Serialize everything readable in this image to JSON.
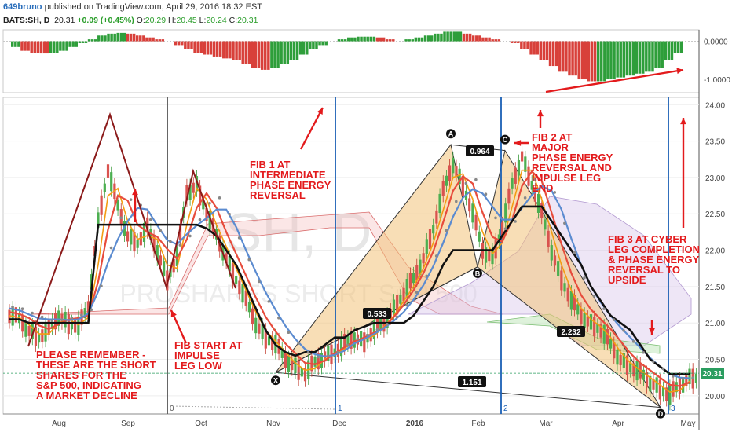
{
  "header": {
    "user": "649bruno",
    "published": "published on TradingView.com, April 29, 2016 18:32 EST"
  },
  "legend": {
    "symbol": "BATS:SH, D",
    "last": "20.31",
    "change": "+0.09 (+0.45%)",
    "o_label": "O:",
    "o": "20.29",
    "h_label": "H:",
    "h": "20.45",
    "l_label": "L:",
    "l": "20.24",
    "c_label": "C:",
    "c": "20.31"
  },
  "colors": {
    "annotation": "#e31a1c",
    "vline": "#1a5fb4",
    "price_badge": "#2a9d5f",
    "harmonic_fill": "#f2c27a"
  },
  "watermark": {
    "symbol": "SH, D",
    "name": "PROSHARES SHORT S&P 500"
  },
  "chart_data": [
    {
      "type": "line",
      "title": "",
      "x_ticks": [
        "Aug",
        "Sep",
        "Oct",
        "Nov",
        "Dec",
        "2016",
        "Feb",
        "Mar",
        "Apr",
        "May"
      ],
      "y_ticks": [
        20.0,
        20.5,
        21.0,
        21.5,
        22.0,
        22.5,
        23.0,
        23.5,
        24.0
      ],
      "ylim": [
        19.75,
        24.1
      ],
      "last_price_label": "20.31",
      "series": [
        {
          "values": [
            21.1,
            21.05,
            20.9,
            20.8,
            20.9,
            21.1,
            21.0,
            20.95,
            21.2,
            22.4,
            23.1,
            22.6,
            22.2,
            22.1,
            22.3,
            22.0,
            21.6,
            21.9,
            22.8,
            22.9,
            22.5,
            22.2,
            21.9,
            21.6,
            21.3,
            21.0,
            20.8,
            20.7,
            20.5,
            20.4,
            20.3,
            20.45,
            20.55,
            20.6,
            20.7,
            20.8,
            20.75,
            20.9,
            21.0,
            21.2,
            21.4,
            21.6,
            21.9,
            22.3,
            22.8,
            23.2,
            22.9,
            22.5,
            22.0,
            21.9,
            22.3,
            22.9,
            23.3,
            22.9,
            22.5,
            22.0,
            21.6,
            21.3,
            21.1,
            21.0,
            20.9,
            20.7,
            20.5,
            20.4,
            20.3,
            20.2,
            20.1,
            20.0,
            20.15,
            20.25
          ]
        },
        {
          "values": [
            21.05,
            21.05,
            21.0,
            21.0,
            21.0,
            21.0,
            21.0,
            21.0,
            21.0,
            22.35,
            22.35,
            22.35,
            22.35,
            22.35,
            22.35,
            22.35,
            22.35,
            22.35,
            22.35,
            22.35,
            22.3,
            22.2,
            22.0,
            21.8,
            21.5,
            21.2,
            20.9,
            20.7,
            20.6,
            20.55,
            20.6,
            20.6,
            20.7,
            20.8,
            20.8,
            20.9,
            20.95,
            21.0,
            21.0,
            21.0,
            21.0,
            21.1,
            21.3,
            21.5,
            21.8,
            22.0,
            22.0,
            22.0,
            22.0,
            22.0,
            22.2,
            22.4,
            22.6,
            22.6,
            22.6,
            22.4,
            22.2,
            22.0,
            21.8,
            21.5,
            21.3,
            21.1,
            21.0,
            20.9,
            20.7,
            20.5,
            20.4,
            20.3,
            20.3,
            20.3
          ]
        }
      ],
      "annotations": [
        "FIB 1 AT\nINTERMEDIATE\nPHASE ENERGY\nREVERSAL",
        "FIB 2 AT\nMAJOR\nPHASE ENERGY\nREVERSAL AND\nIMPULSE LEG\nEND",
        "FIB 3 AT CYBER\nLEG COMPLETION\n& PHASE ENERGY\nREVERSAL TO\nUPSIDE",
        "FIB START AT\nIMPULSE\nLEG LOW",
        "PLEASE REMEMBER -\nTHESE ARE THE SHORT\nSHARES FOR THE\nS&P 500, INDICATING\nA MARKET DECLINE"
      ],
      "pattern_points": [
        {
          "name": "X",
          "label": "X",
          "price": 20.32
        },
        {
          "name": "A",
          "label": "A",
          "price": 23.45
        },
        {
          "name": "B",
          "label": "B",
          "price": 21.77
        },
        {
          "name": "C",
          "label": "C",
          "price": 23.37
        },
        {
          "name": "D",
          "label": "D",
          "price": 19.84
        }
      ],
      "ratios": [
        "0.964",
        "0.533",
        "2.232",
        "1.151"
      ],
      "vertical_markers": [
        "0",
        "1",
        "2",
        "3"
      ]
    },
    {
      "type": "bar",
      "title": "",
      "y_ticks": [
        "0.0000",
        "-1.0000"
      ],
      "ylim": [
        -1.35,
        0.3
      ],
      "values": [
        -0.15,
        -0.25,
        -0.3,
        -0.32,
        -0.3,
        -0.25,
        -0.15,
        -0.05,
        0.05,
        0.15,
        0.2,
        0.22,
        0.2,
        0.15,
        0.1,
        0.05,
        0.0,
        -0.1,
        -0.2,
        -0.3,
        -0.35,
        -0.4,
        -0.45,
        -0.5,
        -0.6,
        -0.7,
        -0.75,
        -0.7,
        -0.6,
        -0.5,
        -0.35,
        -0.2,
        -0.1,
        0.0,
        0.05,
        0.1,
        0.12,
        0.12,
        0.1,
        0.05,
        0.0,
        0.05,
        0.1,
        0.15,
        0.2,
        0.25,
        0.25,
        0.2,
        0.15,
        0.1,
        0.05,
        0.0,
        -0.05,
        -0.2,
        -0.35,
        -0.5,
        -0.65,
        -0.8,
        -0.9,
        -1.0,
        -1.05,
        -1.05,
        -1.0,
        -0.95,
        -0.9,
        -0.85,
        -0.8,
        -0.7,
        -0.5,
        -0.3
      ]
    }
  ]
}
